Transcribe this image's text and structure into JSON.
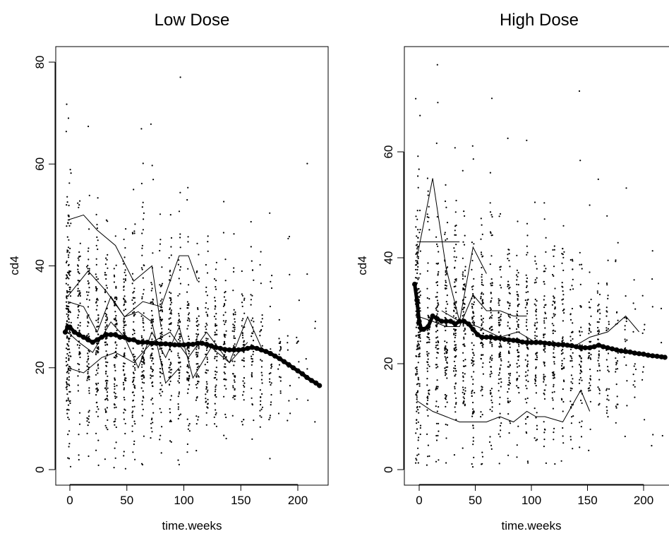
{
  "chart_data": [
    {
      "type": "scatter",
      "title": "Low Dose",
      "xlabel": "time.weeks",
      "ylabel": "cd4",
      "xlim": [
        -8,
        222
      ],
      "ylim": [
        -3,
        82
      ],
      "xticks": [
        "0",
        "50",
        "100",
        "150",
        "200"
      ],
      "xtick_values": [
        0,
        50,
        100,
        150,
        200
      ],
      "yticks": [
        "0",
        "20",
        "40",
        "60",
        "80"
      ],
      "ytick_values": [
        0,
        20,
        40,
        60,
        80
      ],
      "grid": false,
      "point_clouds": [
        {
          "x": -2,
          "mean": 26,
          "sd": 15,
          "n": 110
        },
        {
          "x": 0,
          "mean": 26,
          "sd": 13,
          "n": 70
        },
        {
          "x": 8,
          "mean": 26,
          "sd": 14,
          "n": 70
        },
        {
          "x": 16,
          "mean": 25,
          "sd": 13,
          "n": 80
        },
        {
          "x": 24,
          "mean": 25,
          "sd": 13,
          "n": 85
        },
        {
          "x": 32,
          "mean": 25,
          "sd": 12,
          "n": 85
        },
        {
          "x": 40,
          "mean": 24,
          "sd": 12,
          "n": 80
        },
        {
          "x": 48,
          "mean": 24,
          "sd": 12,
          "n": 80
        },
        {
          "x": 56,
          "mean": 24,
          "sd": 12,
          "n": 75
        },
        {
          "x": 64,
          "mean": 24,
          "sd": 12,
          "n": 75
        },
        {
          "x": 72,
          "mean": 24,
          "sd": 11,
          "n": 70
        },
        {
          "x": 80,
          "mean": 24,
          "sd": 11,
          "n": 70
        },
        {
          "x": 88,
          "mean": 24,
          "sd": 11,
          "n": 65
        },
        {
          "x": 96,
          "mean": 23,
          "sd": 11,
          "n": 65
        },
        {
          "x": 104,
          "mean": 23,
          "sd": 11,
          "n": 60
        },
        {
          "x": 112,
          "mean": 23,
          "sd": 11,
          "n": 60
        },
        {
          "x": 120,
          "mean": 23,
          "sd": 10,
          "n": 55
        },
        {
          "x": 128,
          "mean": 23,
          "sd": 10,
          "n": 55
        },
        {
          "x": 136,
          "mean": 23,
          "sd": 10,
          "n": 50
        },
        {
          "x": 144,
          "mean": 23,
          "sd": 10,
          "n": 50
        },
        {
          "x": 152,
          "mean": 23,
          "sd": 10,
          "n": 45
        },
        {
          "x": 160,
          "mean": 22,
          "sd": 10,
          "n": 40
        },
        {
          "x": 168,
          "mean": 22,
          "sd": 10,
          "n": 32
        },
        {
          "x": 176,
          "mean": 21,
          "sd": 10,
          "n": 25
        },
        {
          "x": 184,
          "mean": 21,
          "sd": 10,
          "n": 18
        },
        {
          "x": 192,
          "mean": 20,
          "sd": 10,
          "n": 12
        },
        {
          "x": 200,
          "mean": 20,
          "sd": 10,
          "n": 8
        },
        {
          "x": 208,
          "mean": 19,
          "sd": 10,
          "n": 5
        },
        {
          "x": 216,
          "mean": 18,
          "sd": 9,
          "n": 3
        }
      ],
      "individual_trajectories": [
        {
          "x": [
            -2,
            12,
            24,
            40,
            56,
            72,
            80
          ],
          "y": [
            49,
            50,
            47,
            44,
            37,
            40,
            28
          ]
        },
        {
          "x": [
            -2,
            16,
            32,
            48,
            64,
            80,
            96,
            104,
            112
          ],
          "y": [
            34,
            39,
            35,
            30,
            33,
            32,
            42,
            42,
            37
          ]
        },
        {
          "x": [
            -2,
            12,
            24,
            36,
            48,
            60,
            72,
            84,
            96
          ],
          "y": [
            33,
            32,
            27,
            34,
            30,
            31,
            29,
            17,
            20
          ]
        },
        {
          "x": [
            -2,
            12,
            28,
            40,
            56,
            72,
            88,
            104,
            120,
            140,
            156,
            168
          ],
          "y": [
            20,
            19,
            22,
            23,
            21,
            25,
            27,
            22,
            27,
            21,
            30,
            24
          ]
        },
        {
          "x": [
            -2,
            8,
            20,
            36,
            48,
            60,
            72,
            84,
            96,
            108,
            124,
            140,
            156
          ],
          "y": [
            27,
            25,
            23,
            29,
            26,
            20,
            27,
            22,
            28,
            18,
            24,
            21,
            25
          ]
        }
      ],
      "smooth_curve": {
        "x": [
          -4,
          -2,
          0,
          4,
          8,
          12,
          16,
          20,
          24,
          28,
          32,
          36,
          40,
          44,
          48,
          52,
          56,
          60,
          64,
          68,
          72,
          76,
          80,
          84,
          88,
          92,
          96,
          100,
          104,
          108,
          112,
          116,
          120,
          124,
          128,
          132,
          136,
          140,
          144,
          148,
          152,
          156,
          160,
          164,
          168,
          172,
          176,
          180,
          184,
          188,
          192,
          196,
          200,
          204,
          208,
          212,
          216,
          219
        ],
        "y": [
          27,
          28,
          28,
          27,
          26.5,
          26,
          25.5,
          25,
          25.5,
          26,
          26.5,
          26.5,
          26.5,
          26,
          26,
          25.5,
          25.5,
          25,
          25,
          25,
          24.8,
          24.8,
          24.7,
          24.7,
          24.6,
          24.5,
          24.5,
          24.5,
          24.6,
          24.6,
          24.8,
          24.8,
          24.6,
          24.3,
          24,
          23.8,
          23.6,
          23.5,
          23.5,
          23.5,
          23.6,
          23.8,
          24,
          23.8,
          23.5,
          23.2,
          22.8,
          22.3,
          21.8,
          21.2,
          20.6,
          20,
          19.4,
          18.8,
          18.1,
          17.5,
          17,
          16.5
        ]
      }
    },
    {
      "type": "scatter",
      "title": "High Dose",
      "xlabel": "time.weeks",
      "ylabel": "cd4",
      "xlim": [
        -8,
        222
      ],
      "ylim": [
        -2,
        80
      ],
      "xticks": [
        "0",
        "50",
        "100",
        "150",
        "200"
      ],
      "xtick_values": [
        0,
        50,
        100,
        150,
        200
      ],
      "yticks": [
        "0",
        "20",
        "40",
        "60"
      ],
      "ytick_values": [
        0,
        20,
        40,
        60
      ],
      "grid": false,
      "point_clouds": [
        {
          "x": -2,
          "mean": 27,
          "sd": 15,
          "n": 110
        },
        {
          "x": 0,
          "mean": 26,
          "sd": 13,
          "n": 70
        },
        {
          "x": 8,
          "mean": 26,
          "sd": 14,
          "n": 70
        },
        {
          "x": 16,
          "mean": 26,
          "sd": 13,
          "n": 80
        },
        {
          "x": 24,
          "mean": 25,
          "sd": 13,
          "n": 85
        },
        {
          "x": 32,
          "mean": 25,
          "sd": 12,
          "n": 85
        },
        {
          "x": 40,
          "mean": 25,
          "sd": 12,
          "n": 80
        },
        {
          "x": 48,
          "mean": 24,
          "sd": 12,
          "n": 80
        },
        {
          "x": 56,
          "mean": 24,
          "sd": 12,
          "n": 75
        },
        {
          "x": 64,
          "mean": 24,
          "sd": 12,
          "n": 75
        },
        {
          "x": 72,
          "mean": 23,
          "sd": 11,
          "n": 70
        },
        {
          "x": 80,
          "mean": 23,
          "sd": 11,
          "n": 70
        },
        {
          "x": 88,
          "mean": 23,
          "sd": 11,
          "n": 65
        },
        {
          "x": 96,
          "mean": 23,
          "sd": 11,
          "n": 65
        },
        {
          "x": 104,
          "mean": 23,
          "sd": 11,
          "n": 60
        },
        {
          "x": 112,
          "mean": 23,
          "sd": 11,
          "n": 60
        },
        {
          "x": 120,
          "mean": 23,
          "sd": 10,
          "n": 55
        },
        {
          "x": 128,
          "mean": 23,
          "sd": 10,
          "n": 55
        },
        {
          "x": 136,
          "mean": 22,
          "sd": 10,
          "n": 50
        },
        {
          "x": 144,
          "mean": 22,
          "sd": 10,
          "n": 50
        },
        {
          "x": 152,
          "mean": 22,
          "sd": 10,
          "n": 45
        },
        {
          "x": 160,
          "mean": 22,
          "sd": 10,
          "n": 40
        },
        {
          "x": 168,
          "mean": 22,
          "sd": 10,
          "n": 32
        },
        {
          "x": 176,
          "mean": 22,
          "sd": 10,
          "n": 25
        },
        {
          "x": 184,
          "mean": 22,
          "sd": 10,
          "n": 18
        },
        {
          "x": 192,
          "mean": 21,
          "sd": 10,
          "n": 12
        },
        {
          "x": 200,
          "mean": 21,
          "sd": 10,
          "n": 8
        },
        {
          "x": 208,
          "mean": 21,
          "sd": 10,
          "n": 5
        },
        {
          "x": 216,
          "mean": 21,
          "sd": 9,
          "n": 3
        }
      ],
      "individual_trajectories": [
        {
          "x": [
            -2,
            36
          ],
          "y": [
            43,
            43
          ]
        },
        {
          "x": [
            -2,
            12,
            24,
            36,
            48,
            60
          ],
          "y": [
            40,
            55,
            38,
            28,
            42,
            37
          ]
        },
        {
          "x": [
            -2,
            12,
            24,
            36,
            48,
            60,
            72,
            84,
            96
          ],
          "y": [
            29,
            28,
            27,
            27,
            33,
            30,
            30,
            29,
            29
          ]
        },
        {
          "x": [
            -2,
            12,
            24,
            36,
            48,
            60,
            72,
            84,
            96,
            104,
            112,
            128,
            144,
            152
          ],
          "y": [
            13,
            11,
            10,
            9,
            9,
            9,
            10,
            9,
            11,
            10,
            10,
            9,
            15,
            11
          ]
        },
        {
          "x": [
            20,
            36,
            52,
            72,
            88,
            104,
            120,
            136,
            152,
            168,
            184,
            196
          ],
          "y": [
            30,
            28,
            27,
            25,
            26,
            24,
            24,
            23,
            25,
            26,
            29,
            26
          ]
        }
      ],
      "smooth_curve": {
        "x": [
          -4,
          -2,
          0,
          2,
          4,
          8,
          12,
          16,
          20,
          24,
          28,
          32,
          36,
          40,
          44,
          48,
          52,
          56,
          60,
          64,
          68,
          72,
          76,
          80,
          84,
          88,
          92,
          96,
          100,
          104,
          108,
          112,
          116,
          120,
          124,
          128,
          132,
          136,
          140,
          144,
          148,
          152,
          156,
          160,
          164,
          168,
          172,
          176,
          180,
          184,
          188,
          192,
          196,
          200,
          204,
          208,
          212,
          216,
          219
        ],
        "y": [
          35,
          32,
          28,
          26.5,
          26.5,
          27,
          29,
          28.5,
          28,
          28,
          28,
          27.5,
          28,
          28,
          27.5,
          26.5,
          25.5,
          25,
          25,
          25,
          24.8,
          24.8,
          24.6,
          24.5,
          24.4,
          24.3,
          24.1,
          24,
          24,
          24,
          24,
          23.9,
          23.8,
          23.7,
          23.6,
          23.6,
          23.5,
          23.4,
          23.2,
          23,
          23,
          23,
          23.2,
          23.5,
          23.2,
          23,
          22.8,
          22.6,
          22.4,
          22.3,
          22.2,
          22,
          21.9,
          21.8,
          21.6,
          21.5,
          21.4,
          21.3,
          21.2
        ]
      }
    }
  ]
}
